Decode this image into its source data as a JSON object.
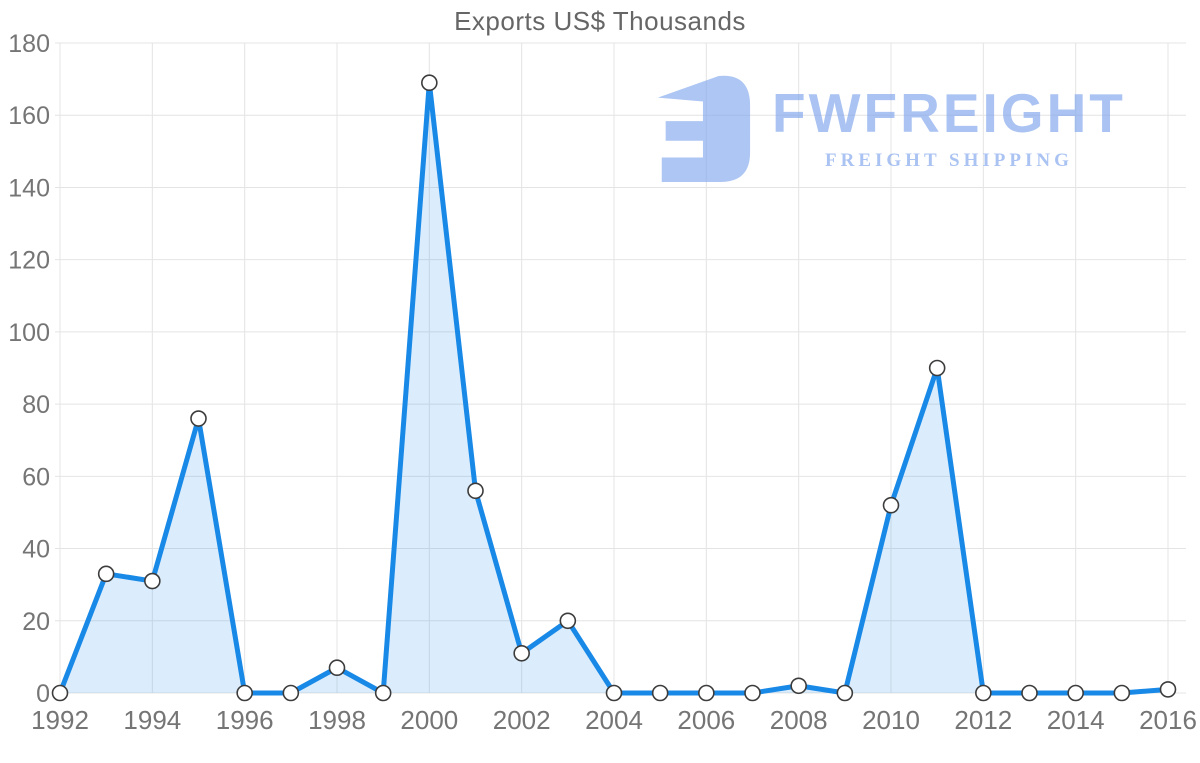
{
  "chart_data": {
    "type": "area",
    "title": "Exports US$ Thousands",
    "xlabel": "",
    "ylabel": "",
    "x": [
      1992,
      1993,
      1994,
      1995,
      1996,
      1997,
      1998,
      1999,
      2000,
      2001,
      2002,
      2003,
      2004,
      2005,
      2006,
      2007,
      2008,
      2009,
      2010,
      2011,
      2012,
      2013,
      2014,
      2015,
      2016
    ],
    "values": [
      0,
      33,
      31,
      76,
      0,
      0,
      7,
      0,
      169,
      56,
      11,
      20,
      0,
      0,
      0,
      0,
      2,
      0,
      52,
      90,
      0,
      0,
      0,
      0,
      1
    ],
    "xticks": [
      1992,
      1994,
      1996,
      1998,
      2000,
      2002,
      2004,
      2006,
      2008,
      2010,
      2012,
      2014,
      2016
    ],
    "yticks": [
      0,
      20,
      40,
      60,
      80,
      100,
      120,
      140,
      160,
      180
    ],
    "ylim": [
      0,
      180
    ],
    "grid": true,
    "legend": "none",
    "marker_shape": "circle",
    "colors": {
      "line": "#1989e8",
      "fill": "rgba(30,140,235,0.16)",
      "grid": "#e4e4e4",
      "axis_label": "#757575",
      "title": "#666666",
      "marker_fill": "#ffffff",
      "marker_stroke": "#3c3c3c"
    }
  },
  "watermark": {
    "title": "FWFREIGHT",
    "subtitle": "FREIGHT SHIPPING",
    "color": "#a9c5f2"
  }
}
